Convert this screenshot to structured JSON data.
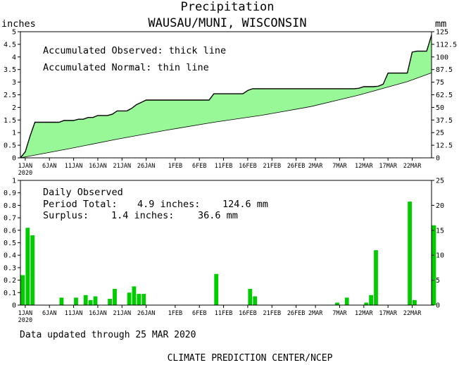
{
  "chart_data": [
    {
      "type": "area",
      "title": "Precipitation",
      "subtitle": "WAUSAU/MUNI, WISCONSIN",
      "ylabel": "inches",
      "ylabel_right": "mm",
      "ylim": [
        0,
        5
      ],
      "ylim_right": [
        0,
        125
      ],
      "yticks": [
        "0",
        "0.5",
        "1",
        "1.5",
        "2",
        "2.5",
        "3",
        "3.5",
        "4",
        "4.5",
        "5"
      ],
      "yticks_right": [
        "0",
        "12.5",
        "25",
        "37.5",
        "50",
        "62.5",
        "75",
        "87.5",
        "100",
        "112.5",
        "125"
      ],
      "x_range_days": [
        0,
        85
      ],
      "x_ticks": [
        {
          "day": 1,
          "label": "1JAN",
          "label2": "2020"
        },
        {
          "day": 6,
          "label": "6JAN"
        },
        {
          "day": 11,
          "label": "11JAN"
        },
        {
          "day": 16,
          "label": "16JAN"
        },
        {
          "day": 21,
          "label": "21JAN"
        },
        {
          "day": 26,
          "label": "26JAN"
        },
        {
          "day": 32,
          "label": "1FEB"
        },
        {
          "day": 37,
          "label": "6FEB"
        },
        {
          "day": 42,
          "label": "11FEB"
        },
        {
          "day": 47,
          "label": "16FEB"
        },
        {
          "day": 52,
          "label": "21FEB"
        },
        {
          "day": 57,
          "label": "26FEB"
        },
        {
          "day": 61,
          "label": "2MAR"
        },
        {
          "day": 66,
          "label": "7MAR"
        },
        {
          "day": 71,
          "label": "12MAR"
        },
        {
          "day": 76,
          "label": "17MAR"
        },
        {
          "day": 81,
          "label": "22MAR"
        }
      ],
      "annotations": [
        "Accumulated Observed: thick line",
        "Accumulated Normal: thin line"
      ],
      "series": [
        {
          "name": "Accumulated Observed",
          "points": [
            [
              0,
              0
            ],
            [
              1,
              0.24
            ],
            [
              2,
              0.86
            ],
            [
              3,
              1.41
            ],
            [
              8,
              1.41
            ],
            [
              9,
              1.48
            ],
            [
              11,
              1.48
            ],
            [
              12,
              1.53
            ],
            [
              13,
              1.53
            ],
            [
              14,
              1.6
            ],
            [
              15,
              1.6
            ],
            [
              16,
              1.68
            ],
            [
              18,
              1.68
            ],
            [
              19,
              1.73
            ],
            [
              20,
              1.86
            ],
            [
              22,
              1.86
            ],
            [
              23,
              1.96
            ],
            [
              24,
              2.11
            ],
            [
              25,
              2.2
            ],
            [
              26,
              2.29
            ],
            [
              39,
              2.29
            ],
            [
              40,
              2.54
            ],
            [
              46,
              2.54
            ],
            [
              47,
              2.67
            ],
            [
              48,
              2.74
            ],
            [
              69,
              2.74
            ],
            [
              70,
              2.76
            ],
            [
              71,
              2.82
            ],
            [
              73,
              2.82
            ],
            [
              74,
              2.84
            ],
            [
              75,
              2.92
            ],
            [
              76,
              3.36
            ],
            [
              80,
              3.36
            ],
            [
              81,
              4.19
            ],
            [
              82,
              4.23
            ],
            [
              84,
              4.23
            ],
            [
              85,
              4.87
            ]
          ]
        },
        {
          "name": "Accumulated Normal",
          "points": [
            [
              0,
              0
            ],
            [
              3,
              0.11
            ],
            [
              10,
              0.36
            ],
            [
              20,
              0.74
            ],
            [
              30,
              1.09
            ],
            [
              40,
              1.41
            ],
            [
              50,
              1.69
            ],
            [
              60,
              2.03
            ],
            [
              70,
              2.49
            ],
            [
              80,
              3.02
            ],
            [
              85,
              3.37
            ]
          ]
        }
      ]
    },
    {
      "type": "bar",
      "ylim": [
        0,
        1
      ],
      "ylim_right": [
        0,
        25
      ],
      "yticks": [
        "0",
        "0.1",
        "0.2",
        "0.3",
        "0.4",
        "0.5",
        "0.6",
        "0.7",
        "0.8",
        "0.9",
        "1"
      ],
      "yticks_right": [
        "0",
        "5",
        "10",
        "15",
        "20",
        "25"
      ],
      "x_range_days": [
        0,
        85
      ],
      "annotations": {
        "heading": "Daily Observed",
        "period_label": "Period Total:",
        "period_inches": "4.9 inches:",
        "period_mm": "124.6 mm",
        "surplus_label": "Surplus:",
        "surplus_inches": "1.4 inches:",
        "surplus_mm": "36.6 mm"
      },
      "series": [
        {
          "name": "Daily Observed",
          "days": [
            0.5,
            1.5,
            2.5,
            8.5,
            11.5,
            13.5,
            14.5,
            15.5,
            18.5,
            19.5,
            22.5,
            23.5,
            24.5,
            25.5,
            40.5,
            47.5,
            48.5,
            65.5,
            67.5,
            71.5,
            72.5,
            73.5,
            80.5,
            81.5,
            85.5
          ],
          "values": [
            0.24,
            0.62,
            0.56,
            0.06,
            0.06,
            0.08,
            0.04,
            0.07,
            0.05,
            0.13,
            0.1,
            0.15,
            0.09,
            0.09,
            0.25,
            0.13,
            0.07,
            0.02,
            0.06,
            0.02,
            0.08,
            0.44,
            0.83,
            0.04,
            0.64
          ]
        }
      ]
    }
  ],
  "footer": {
    "updated": "Data updated through 25 MAR 2020",
    "credit": "CLIMATE PREDICTION CENTER/NCEP"
  },
  "colors": {
    "fill": "#98f898",
    "bar": "#00cc00",
    "line": "#000000"
  }
}
